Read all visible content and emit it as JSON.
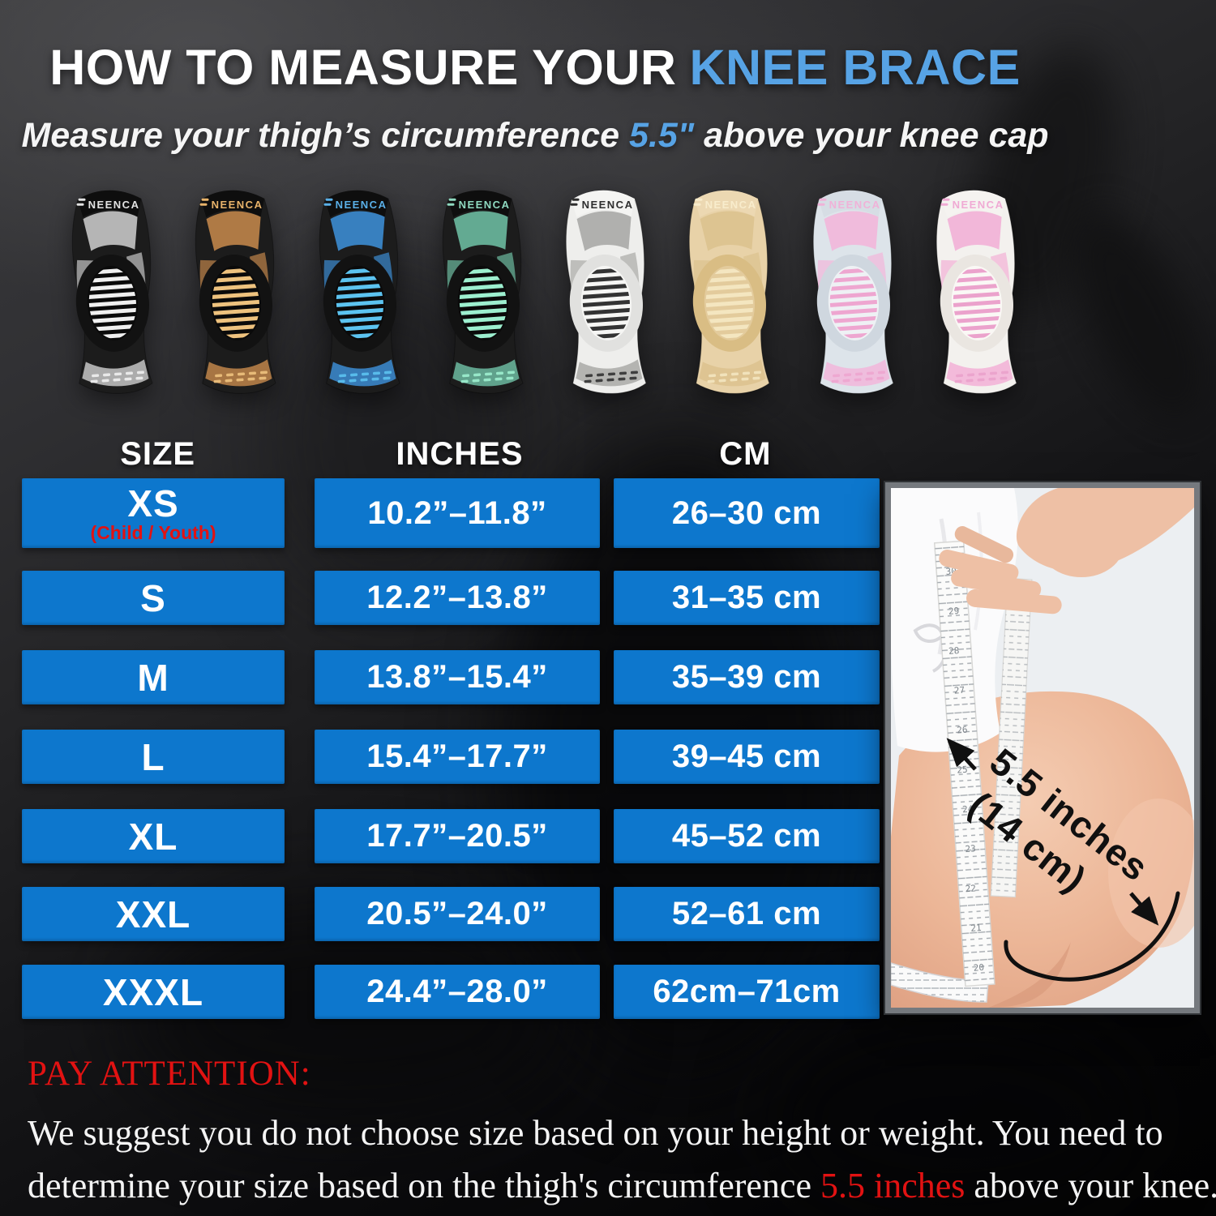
{
  "header": {
    "title": {
      "prefix": "HOW TO MEASURE YOUR",
      "highlight": "KNEE BRACE"
    },
    "subtitle": {
      "pre": "Measure your thigh’s circumference ",
      "highlight": "5.5\"",
      "post": " above your knee cap"
    }
  },
  "brand": "NEENCA",
  "products": [
    {
      "name": "black-gray",
      "body": "#1c1c1c",
      "band": "#0e0e0e",
      "brand_color": "#e2e2e2",
      "accent": "#c6c6c6",
      "frame": "#121212",
      "pad": "#0a0a0a",
      "stripe": "#f0f0f0"
    },
    {
      "name": "black-copper",
      "body": "#1c1c1c",
      "band": "#0e0e0e",
      "brand_color": "#e8b36a",
      "accent": "#c0854a",
      "frame": "#121212",
      "pad": "#0a0a0a",
      "stripe": "#eec27e"
    },
    {
      "name": "black-blue",
      "body": "#1c1c1c",
      "band": "#0e0e0e",
      "brand_color": "#5ab0e8",
      "accent": "#3c8cd2",
      "frame": "#121212",
      "pad": "#0a0a0a",
      "stripe": "#5cc3f0"
    },
    {
      "name": "black-green",
      "body": "#1c1c1c",
      "band": "#0e0e0e",
      "brand_color": "#8fd9c0",
      "accent": "#6cbaa0",
      "frame": "#121212",
      "pad": "#0a0a0a",
      "stripe": "#9defcf"
    },
    {
      "name": "white",
      "body": "#eeeeec",
      "band": "#f4f4f2",
      "brand_color": "#2e2e2e",
      "accent": "#a9a9a7",
      "frame": "#e1e1df",
      "pad": "#f6f6f4",
      "stripe": "#333333"
    },
    {
      "name": "beige",
      "body": "#e8d2a8",
      "band": "#ecd8b2",
      "brand_color": "#f8eccc",
      "accent": "#dcc28e",
      "frame": "#d9bd84",
      "pad": "#e3cb9c",
      "stripe": "#f4e6c0"
    },
    {
      "name": "gray-pink",
      "body": "#dde4ea",
      "band": "#d6dde4",
      "brand_color": "#f0b2d8",
      "accent": "#f2b6da",
      "frame": "#cfd7df",
      "pad": "#eef1f4",
      "stripe": "#eea6d0"
    },
    {
      "name": "white-pink",
      "body": "#f3f1ee",
      "band": "#f5f3f0",
      "brand_color": "#f0aad4",
      "accent": "#f2b0d6",
      "frame": "#eae6e1",
      "pad": "#faf8f5",
      "stripe": "#eba2cc"
    }
  ],
  "size_table": {
    "headers": [
      "SIZE",
      "INCHES",
      "CM"
    ],
    "rows": [
      {
        "size": "XS",
        "note": "(Child / Youth)",
        "inches": "10.2”–11.8”",
        "cm": "26–30 cm"
      },
      {
        "size": "S",
        "inches": "12.2”–13.8”",
        "cm": "31–35 cm"
      },
      {
        "size": "M",
        "inches": "13.8”–15.4”",
        "cm": "35–39 cm"
      },
      {
        "size": "L",
        "inches": "15.4”–17.7”",
        "cm": "39–45 cm"
      },
      {
        "size": "XL",
        "inches": "17.7”–20.5”",
        "cm": "45–52 cm"
      },
      {
        "size": "XXL",
        "inches": "20.5”–24.0”",
        "cm": "52–61 cm"
      },
      {
        "size": "XXXL",
        "inches": "24.4”–28.0”",
        "cm": "62cm–71cm"
      }
    ]
  },
  "photo": {
    "annotation": {
      "line1": "5.5 inches",
      "line2": "(14 cm)"
    }
  },
  "footer": {
    "heading": "PAY ATTENTION:",
    "line1": "We suggest you do not choose size based on your height or weight. You need to",
    "line2_pre": "determine your size based on the thigh's circumference ",
    "line2_highlight": "5.5 inches",
    "line2_post": " above your knee."
  },
  "colors": {
    "table_blue": "#0d77cd",
    "accent_blue": "#57a3e5",
    "alert_red": "#e21212"
  }
}
